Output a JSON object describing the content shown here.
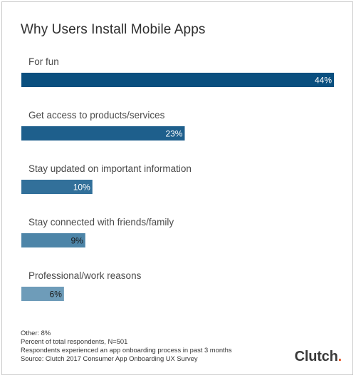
{
  "chart_data": {
    "type": "bar",
    "orientation": "horizontal",
    "title": "Why Users Install Mobile Apps",
    "categories": [
      "For fun",
      "Get access to products/services",
      "Stay updated on important information",
      "Stay connected with friends/family",
      "Professional/work reasons"
    ],
    "values": [
      44,
      23,
      10,
      9,
      6
    ],
    "value_labels": [
      "44%",
      "23%",
      "10%",
      "9%",
      "6%"
    ],
    "unit": "%",
    "xlim": [
      0,
      44
    ],
    "grid": false,
    "bar_colors": [
      "#0a4f7f",
      "#1e5f8c",
      "#32709a",
      "#4d85a8",
      "#6e9cb9"
    ],
    "value_label_colors": [
      "#ffffff",
      "#ffffff",
      "#ffffff",
      "#1a1a1a",
      "#1a1a1a"
    ]
  },
  "notes": [
    "Other: 8%",
    "Percent of total respondents, N=501",
    "Respondents experienced an app onboarding process in past 3 months",
    "Source: Clutch 2017 Consumer App Onboarding UX Survey"
  ],
  "brand": {
    "name": "Clutch",
    "accent_color": "#e85a2c"
  }
}
